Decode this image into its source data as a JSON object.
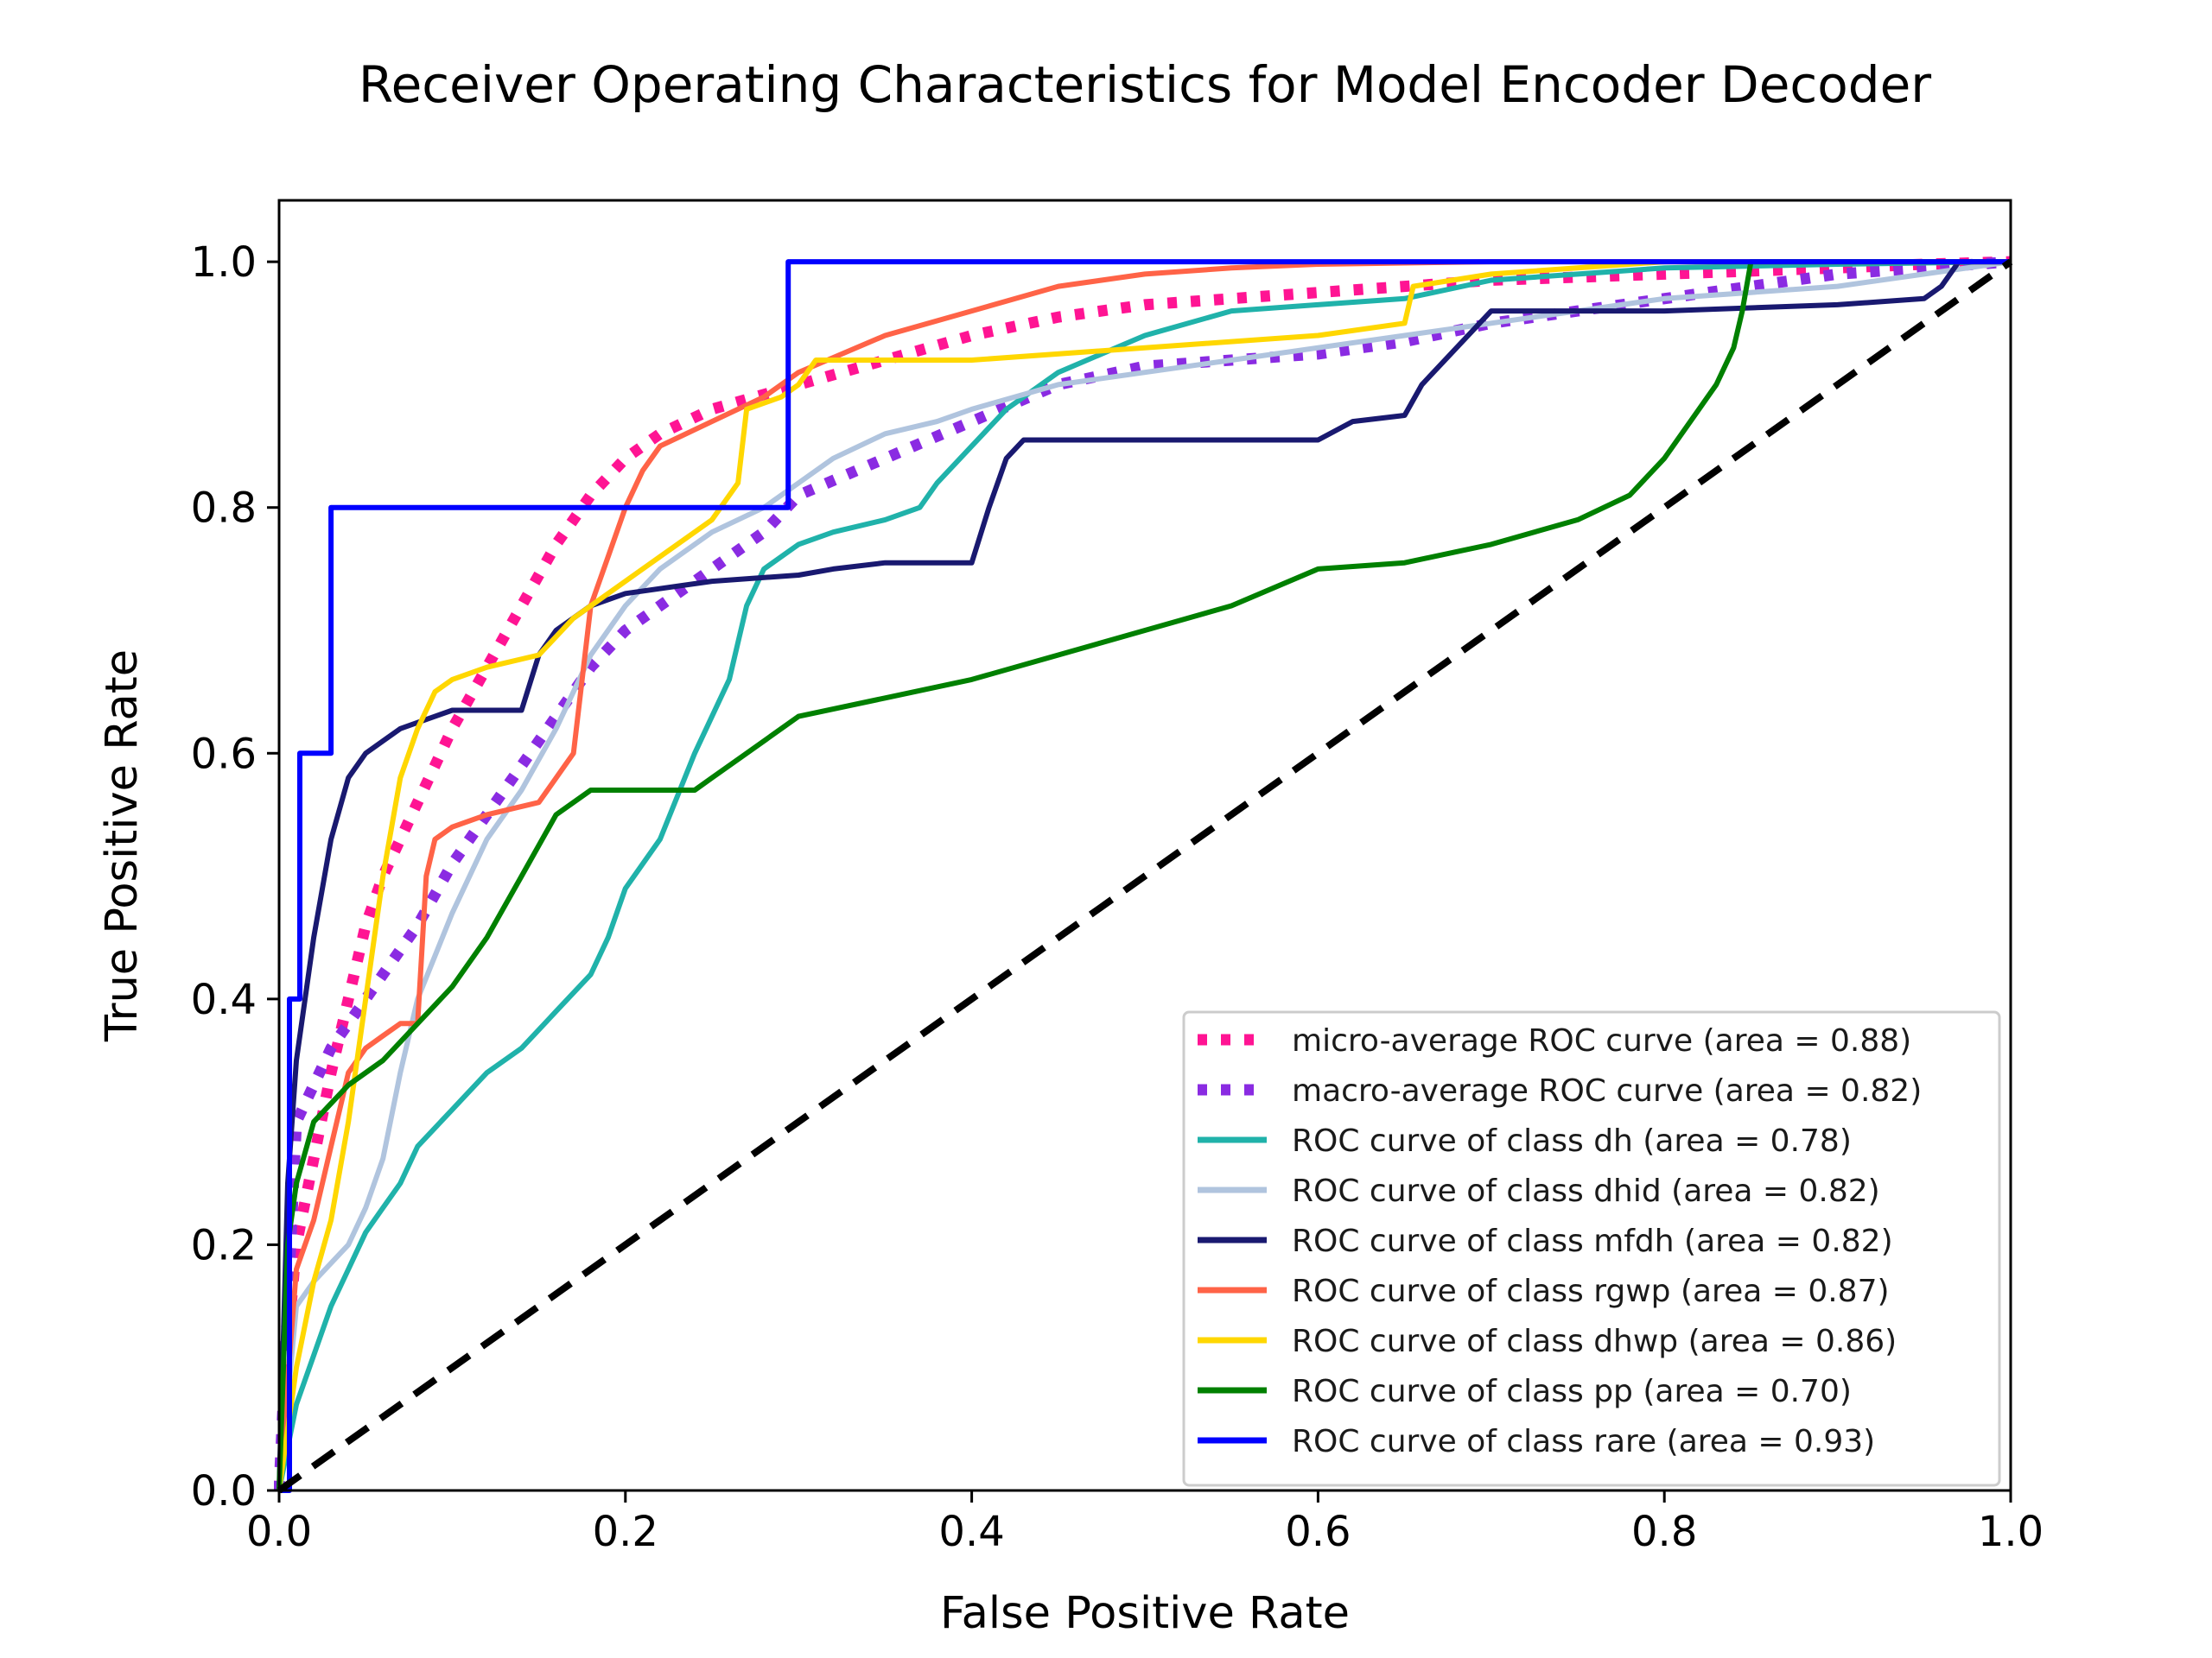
{
  "chart_data": {
    "type": "line",
    "title": "Receiver Operating Characteristics for Model Encoder Decoder",
    "xlabel": "False Positive Rate",
    "ylabel": "True Positive Rate",
    "xlim": [
      0.0,
      1.0
    ],
    "ylim": [
      0.0,
      1.05
    ],
    "xticks": [
      "0.0",
      "0.2",
      "0.4",
      "0.6",
      "0.8",
      "1.0"
    ],
    "yticks": [
      "0.0",
      "0.2",
      "0.4",
      "0.6",
      "0.8",
      "1.0"
    ],
    "grid": false,
    "legend_position": "lower-right",
    "series": [
      {
        "name": "micro-average ROC curve (area = 0.88)",
        "color": "#ff1493",
        "style": "dotted",
        "width": "thick",
        "x": [
          0.0,
          0.005,
          0.01,
          0.02,
          0.03,
          0.04,
          0.05,
          0.06,
          0.07,
          0.08,
          0.09,
          0.1,
          0.12,
          0.14,
          0.16,
          0.18,
          0.2,
          0.22,
          0.25,
          0.3,
          0.35,
          0.4,
          0.45,
          0.5,
          0.55,
          0.6,
          0.65,
          0.7,
          0.8,
          0.9,
          0.95,
          1.0
        ],
        "y": [
          0.0,
          0.12,
          0.2,
          0.27,
          0.34,
          0.4,
          0.46,
          0.5,
          0.53,
          0.56,
          0.59,
          0.62,
          0.67,
          0.72,
          0.77,
          0.81,
          0.84,
          0.86,
          0.88,
          0.9,
          0.92,
          0.94,
          0.955,
          0.965,
          0.97,
          0.975,
          0.98,
          0.985,
          0.99,
          0.995,
          0.998,
          1.0
        ]
      },
      {
        "name": "macro-average ROC curve (area = 0.82)",
        "color": "#8a2be2",
        "style": "dotted",
        "width": "thick",
        "x": [
          0.0,
          0.01,
          0.02,
          0.03,
          0.04,
          0.06,
          0.08,
          0.1,
          0.12,
          0.14,
          0.16,
          0.18,
          0.2,
          0.22,
          0.24,
          0.26,
          0.28,
          0.3,
          0.35,
          0.4,
          0.45,
          0.5,
          0.55,
          0.6,
          0.65,
          0.7,
          0.75,
          0.8,
          0.85,
          0.9,
          0.95,
          1.0
        ],
        "y": [
          0.0,
          0.3,
          0.33,
          0.36,
          0.38,
          0.42,
          0.46,
          0.51,
          0.55,
          0.59,
          0.63,
          0.67,
          0.7,
          0.72,
          0.74,
          0.76,
          0.78,
          0.81,
          0.84,
          0.87,
          0.9,
          0.915,
          0.92,
          0.925,
          0.935,
          0.95,
          0.96,
          0.97,
          0.98,
          0.99,
          0.995,
          1.0
        ]
      },
      {
        "name": "ROC curve of class dh (area = 0.78)",
        "color": "#20b2aa",
        "style": "solid",
        "width": "normal",
        "x": [
          0.0,
          0.01,
          0.02,
          0.03,
          0.04,
          0.05,
          0.06,
          0.07,
          0.08,
          0.1,
          0.12,
          0.14,
          0.16,
          0.18,
          0.19,
          0.2,
          0.22,
          0.24,
          0.26,
          0.27,
          0.28,
          0.3,
          0.32,
          0.35,
          0.37,
          0.38,
          0.4,
          0.42,
          0.45,
          0.5,
          0.55,
          0.6,
          0.65,
          0.7,
          0.75,
          0.8,
          0.9,
          1.0
        ],
        "y": [
          0.0,
          0.07,
          0.11,
          0.15,
          0.18,
          0.21,
          0.23,
          0.25,
          0.28,
          0.31,
          0.34,
          0.36,
          0.39,
          0.42,
          0.45,
          0.49,
          0.53,
          0.6,
          0.66,
          0.72,
          0.75,
          0.77,
          0.78,
          0.79,
          0.8,
          0.82,
          0.85,
          0.88,
          0.91,
          0.94,
          0.96,
          0.965,
          0.97,
          0.985,
          0.99,
          0.995,
          0.998,
          1.0
        ]
      },
      {
        "name": "ROC curve of class dhid (area = 0.82)",
        "color": "#b0c4de",
        "style": "solid",
        "width": "normal",
        "x": [
          0.0,
          0.01,
          0.02,
          0.04,
          0.05,
          0.06,
          0.07,
          0.08,
          0.1,
          0.12,
          0.14,
          0.16,
          0.18,
          0.2,
          0.22,
          0.25,
          0.28,
          0.3,
          0.32,
          0.35,
          0.38,
          0.4,
          0.45,
          0.5,
          0.55,
          0.6,
          0.65,
          0.7,
          0.75,
          0.8,
          0.85,
          0.9,
          0.95,
          1.0
        ],
        "y": [
          0.0,
          0.15,
          0.17,
          0.2,
          0.23,
          0.27,
          0.34,
          0.4,
          0.47,
          0.53,
          0.57,
          0.62,
          0.68,
          0.72,
          0.75,
          0.78,
          0.8,
          0.82,
          0.84,
          0.86,
          0.87,
          0.88,
          0.9,
          0.91,
          0.92,
          0.93,
          0.94,
          0.95,
          0.96,
          0.97,
          0.975,
          0.98,
          0.99,
          1.0
        ]
      },
      {
        "name": "ROC curve of class mfdh (area = 0.82)",
        "color": "#191970",
        "style": "solid",
        "width": "normal",
        "x": [
          0.0,
          0.005,
          0.01,
          0.02,
          0.03,
          0.04,
          0.05,
          0.06,
          0.07,
          0.08,
          0.09,
          0.1,
          0.12,
          0.14,
          0.15,
          0.16,
          0.18,
          0.2,
          0.25,
          0.3,
          0.32,
          0.35,
          0.4,
          0.41,
          0.42,
          0.43,
          0.5,
          0.6,
          0.62,
          0.65,
          0.66,
          0.68,
          0.7,
          0.8,
          0.9,
          0.95,
          0.96,
          0.97,
          1.0
        ],
        "y": [
          0.0,
          0.25,
          0.35,
          0.45,
          0.53,
          0.58,
          0.6,
          0.61,
          0.62,
          0.625,
          0.63,
          0.635,
          0.635,
          0.635,
          0.68,
          0.7,
          0.72,
          0.73,
          0.74,
          0.745,
          0.75,
          0.755,
          0.755,
          0.8,
          0.84,
          0.855,
          0.855,
          0.855,
          0.87,
          0.875,
          0.9,
          0.93,
          0.96,
          0.96,
          0.965,
          0.97,
          0.98,
          1.0,
          1.0
        ]
      },
      {
        "name": "ROC curve of class rgwp (area = 0.87)",
        "color": "#ff6347",
        "style": "solid",
        "width": "normal",
        "x": [
          0.0,
          0.01,
          0.02,
          0.03,
          0.04,
          0.05,
          0.06,
          0.07,
          0.08,
          0.085,
          0.09,
          0.1,
          0.12,
          0.15,
          0.17,
          0.18,
          0.19,
          0.2,
          0.21,
          0.22,
          0.25,
          0.28,
          0.3,
          0.35,
          0.4,
          0.45,
          0.5,
          0.55,
          0.6,
          0.7,
          0.8,
          0.9,
          1.0
        ],
        "y": [
          0.0,
          0.18,
          0.22,
          0.28,
          0.34,
          0.36,
          0.37,
          0.38,
          0.38,
          0.5,
          0.53,
          0.54,
          0.55,
          0.56,
          0.6,
          0.72,
          0.76,
          0.8,
          0.83,
          0.85,
          0.87,
          0.89,
          0.91,
          0.94,
          0.96,
          0.98,
          0.99,
          0.995,
          0.998,
          1.0,
          1.0,
          1.0,
          1.0
        ]
      },
      {
        "name": "ROC curve of class dhwp (area = 0.86)",
        "color": "#ffd700",
        "style": "solid",
        "width": "normal",
        "x": [
          0.0,
          0.01,
          0.02,
          0.03,
          0.04,
          0.05,
          0.06,
          0.07,
          0.08,
          0.09,
          0.1,
          0.12,
          0.15,
          0.17,
          0.2,
          0.22,
          0.25,
          0.265,
          0.27,
          0.29,
          0.3,
          0.31,
          0.35,
          0.4,
          0.5,
          0.6,
          0.65,
          0.655,
          0.7,
          0.8,
          0.9,
          1.0
        ],
        "y": [
          0.0,
          0.1,
          0.17,
          0.22,
          0.3,
          0.4,
          0.5,
          0.58,
          0.62,
          0.65,
          0.66,
          0.67,
          0.68,
          0.71,
          0.74,
          0.76,
          0.79,
          0.82,
          0.88,
          0.89,
          0.9,
          0.92,
          0.92,
          0.92,
          0.93,
          0.94,
          0.95,
          0.98,
          0.99,
          1.0,
          1.0,
          1.0
        ]
      },
      {
        "name": "ROC curve of class pp (area = 0.70)",
        "color": "#008000",
        "style": "solid",
        "width": "normal",
        "x": [
          0.0,
          0.005,
          0.01,
          0.02,
          0.04,
          0.06,
          0.08,
          0.1,
          0.12,
          0.14,
          0.16,
          0.18,
          0.2,
          0.22,
          0.24,
          0.25,
          0.27,
          0.3,
          0.35,
          0.4,
          0.45,
          0.5,
          0.55,
          0.6,
          0.65,
          0.7,
          0.75,
          0.78,
          0.8,
          0.82,
          0.83,
          0.84,
          0.845,
          0.85,
          0.9,
          1.0
        ],
        "y": [
          0.0,
          0.2,
          0.25,
          0.3,
          0.33,
          0.35,
          0.38,
          0.41,
          0.45,
          0.5,
          0.55,
          0.57,
          0.57,
          0.57,
          0.57,
          0.58,
          0.6,
          0.63,
          0.645,
          0.66,
          0.68,
          0.7,
          0.72,
          0.75,
          0.755,
          0.77,
          0.79,
          0.81,
          0.84,
          0.88,
          0.9,
          0.93,
          0.96,
          1.0,
          1.0,
          1.0
        ]
      },
      {
        "name": "ROC curve of class rare (area = 0.93)",
        "color": "#0000ff",
        "style": "solid",
        "width": "normal",
        "step": true,
        "x": [
          0.0,
          0.006,
          0.006,
          0.012,
          0.012,
          0.03,
          0.03,
          0.294,
          0.294,
          1.0
        ],
        "y": [
          0.0,
          0.0,
          0.4,
          0.4,
          0.6,
          0.6,
          0.8,
          0.8,
          1.0,
          1.0
        ]
      },
      {
        "name": "",
        "color": "#000000",
        "style": "dashed",
        "width": "thick",
        "x": [
          0.0,
          1.0
        ],
        "y": [
          0.0,
          1.0
        ]
      }
    ]
  }
}
